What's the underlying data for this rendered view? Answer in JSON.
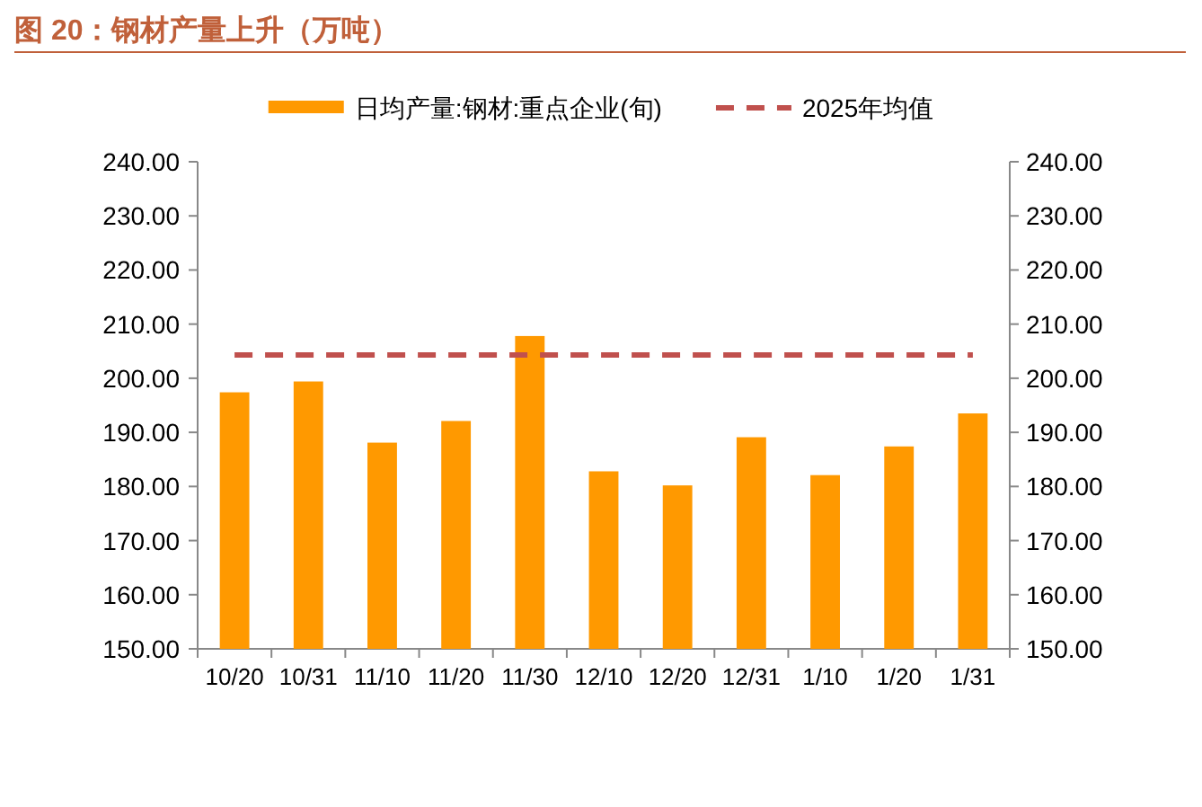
{
  "chart_data": {
    "type": "bar",
    "title": "图 20：钢材产量上升（万吨）",
    "categories": [
      "10/20",
      "10/31",
      "11/10",
      "11/20",
      "11/30",
      "12/10",
      "12/20",
      "12/31",
      "1/10",
      "1/20",
      "1/31"
    ],
    "series": [
      {
        "name": "日均产量:钢材:重点企业(旬)",
        "color": "#ff9900",
        "values": [
          197.4,
          199.4,
          188.1,
          192.1,
          207.8,
          182.8,
          180.2,
          189.1,
          182.1,
          187.4,
          193.5
        ]
      }
    ],
    "ref_lines": [
      {
        "axis": "y",
        "value": 204.3,
        "label": "2025年均值",
        "color": "#c0504d",
        "line_style": "dashed"
      }
    ],
    "ylim": [
      150,
      240
    ],
    "yticks": [
      {
        "value": 150,
        "label": "150.00"
      },
      {
        "value": 160,
        "label": "160.00"
      },
      {
        "value": 170,
        "label": "170.00"
      },
      {
        "value": 180,
        "label": "180.00"
      },
      {
        "value": 190,
        "label": "190.00"
      },
      {
        "value": 200,
        "label": "200.00"
      },
      {
        "value": 210,
        "label": "210.00"
      },
      {
        "value": 220,
        "label": "220.00"
      },
      {
        "value": 230,
        "label": "230.00"
      },
      {
        "value": 240,
        "label": "240.00"
      }
    ],
    "y2lim": [
      150,
      240
    ],
    "y2ticks": [
      {
        "value": 150,
        "label": "150.00"
      },
      {
        "value": 160,
        "label": "160.00"
      },
      {
        "value": 170,
        "label": "170.00"
      },
      {
        "value": 180,
        "label": "180.00"
      },
      {
        "value": 190,
        "label": "190.00"
      },
      {
        "value": 200,
        "label": "200.00"
      },
      {
        "value": 210,
        "label": "210.00"
      },
      {
        "value": 220,
        "label": "220.00"
      },
      {
        "value": 230,
        "label": "230.00"
      },
      {
        "value": 240,
        "label": "240.00"
      }
    ],
    "legend": "top"
  }
}
